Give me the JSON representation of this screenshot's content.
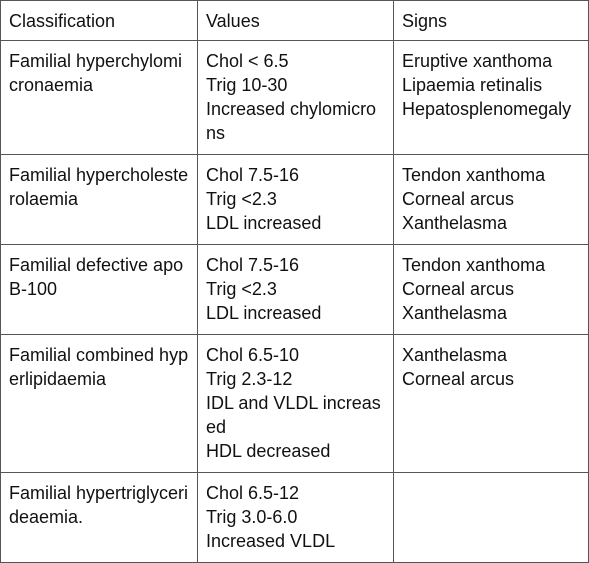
{
  "table": {
    "headers": [
      "Classification",
      "Values",
      "Signs"
    ],
    "rows": [
      {
        "classification": "Familial hyperchylomicronaemia",
        "values": [
          "Chol < 6.5",
          "Trig 10-30",
          "Increased chylomicrons"
        ],
        "signs": [
          "Eruptive xanthoma",
          "Lipaemia retinalis",
          "Hepatosplenomegaly"
        ]
      },
      {
        "classification": "Familial hypercholesterolaemia",
        "values": [
          "Chol 7.5-16",
          "Trig <2.3",
          "LDL increased"
        ],
        "signs": [
          "Tendon xanthoma",
          "Corneal arcus",
          "Xanthelasma"
        ]
      },
      {
        "classification": "Familial defective apoB-100",
        "values": [
          "Chol 7.5-16",
          "Trig <2.3",
          "LDL increased"
        ],
        "signs": [
          "Tendon xanthoma",
          "Corneal arcus",
          "Xanthelasma"
        ]
      },
      {
        "classification": "Familial combined hyperlipidaemia",
        "values": [
          "Chol 6.5-10",
          "Trig 2.3-12",
          "IDL and VLDL increased",
          "HDL decreased"
        ],
        "signs": [
          "Xanthelasma",
          "Corneal arcus"
        ]
      },
      {
        "classification": "Familial hypertriglycerideaemia.",
        "values": [
          "Chol 6.5-12",
          "Trig 3.0-6.0",
          "Increased VLDL"
        ],
        "signs": []
      }
    ]
  }
}
